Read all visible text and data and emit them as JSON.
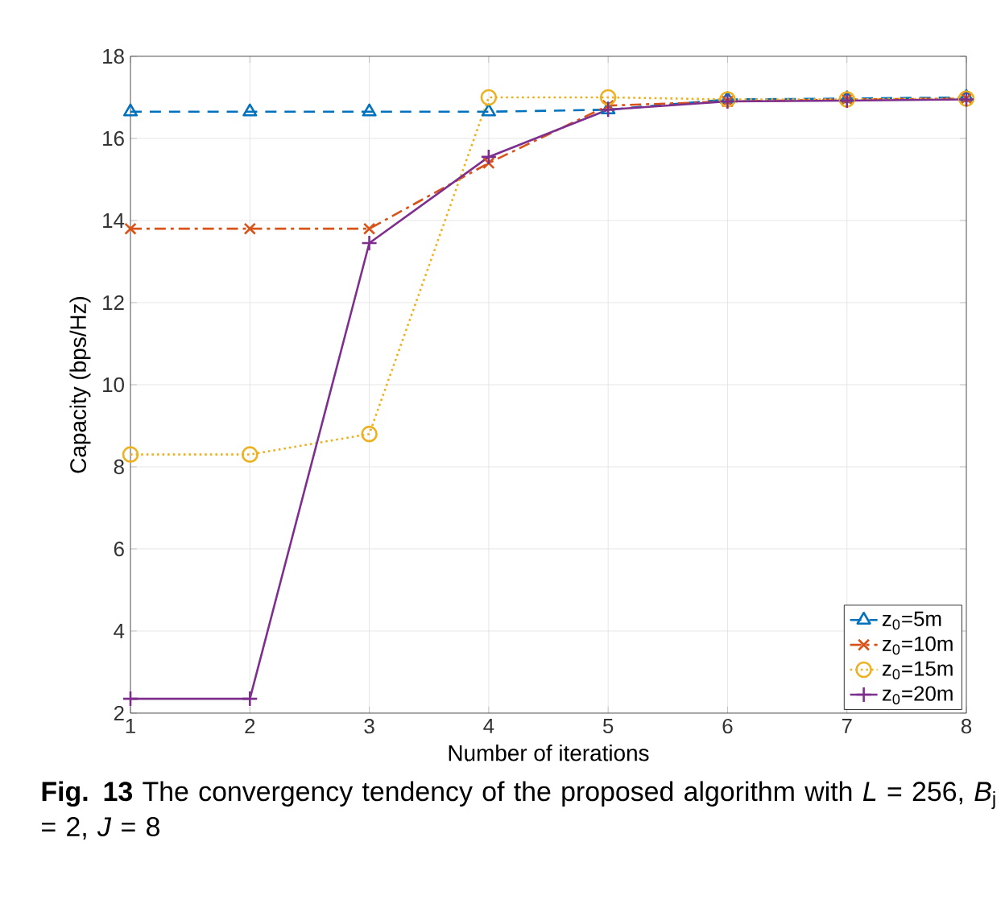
{
  "chart_data": {
    "type": "line",
    "xlabel": "Number of iterations",
    "ylabel": "Capacity (bps/Hz)",
    "x": [
      1,
      2,
      3,
      4,
      5,
      6,
      7,
      8
    ],
    "xlim": [
      1,
      8
    ],
    "xticks": [
      1,
      2,
      3,
      4,
      5,
      6,
      7,
      8
    ],
    "ylim": [
      2,
      18
    ],
    "yticks": [
      2,
      4,
      6,
      8,
      10,
      12,
      14,
      16,
      18
    ],
    "grid": true,
    "legend": "bottom right",
    "series": [
      {
        "name": "z$_{0}$=5m",
        "color": "#0072bd",
        "marker": "triangle",
        "line_style": "dashed",
        "values": [
          16.65,
          16.65,
          16.65,
          16.65,
          16.7,
          16.95,
          16.97,
          17.0
        ]
      },
      {
        "name": "z$_{0}$=10m",
        "color": "#d95319",
        "marker": "cross",
        "line_style": "dashdot",
        "values": [
          13.8,
          13.8,
          13.8,
          15.4,
          16.8,
          16.9,
          16.95,
          16.97
        ]
      },
      {
        "name": "z$_{0}$=15m",
        "color": "#edb120",
        "marker": "circle",
        "line_style": "dotted",
        "values": [
          8.3,
          8.3,
          8.8,
          17.0,
          17.0,
          16.95,
          16.95,
          16.97
        ]
      },
      {
        "name": "z$_{0}$=20m",
        "color": "#7e2f8e",
        "marker": "plus",
        "line_style": "solid",
        "values": [
          2.35,
          2.35,
          13.45,
          15.55,
          16.7,
          16.9,
          16.92,
          16.95
        ]
      }
    ],
    "annotations": [
      "**Fig. 13** The convergency tendency of the proposed algorithm with *L* = 256, *B*$_{j}$ = 2, *J* = 8"
    ]
  }
}
